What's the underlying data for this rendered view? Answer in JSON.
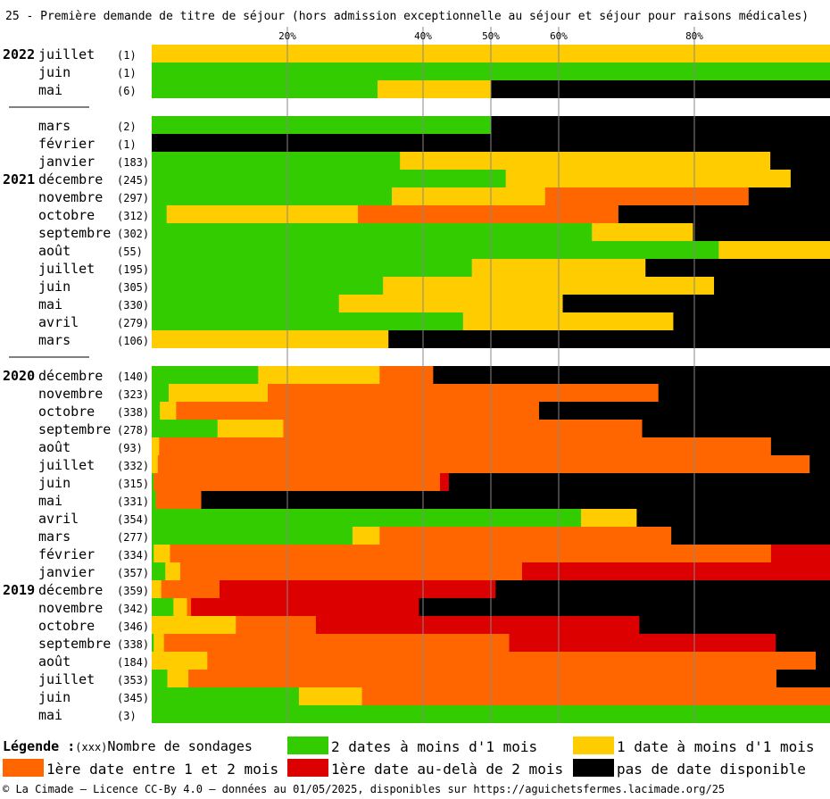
{
  "title": "25 - Première demande de titre de séjour (hors admission exceptionnelle au séjour et séjour pour raisons médicales)",
  "colors": {
    "green": "#33cc00",
    "yellow": "#ffcc00",
    "orange": "#ff6600",
    "red": "#dd0000",
    "black": "#000000"
  },
  "chart_data": {
    "type": "bar",
    "orientation": "horizontal",
    "stacked": true,
    "unit": "%",
    "xlim": [
      0,
      100
    ],
    "x_ticks": [
      20,
      40,
      50,
      60,
      80
    ],
    "x_tick_labels": [
      "20%",
      "40%",
      "50%",
      "60%",
      "80%"
    ],
    "grid": true,
    "series_order": [
      "green",
      "yellow",
      "orange",
      "red",
      "black"
    ],
    "rows": [
      {
        "year": "2022",
        "month": "juillet",
        "n": "(1)",
        "values": [
          0,
          100,
          0,
          0,
          0
        ]
      },
      {
        "year": "",
        "month": "juin",
        "n": "(1)",
        "values": [
          100,
          0,
          0,
          0,
          0
        ]
      },
      {
        "year": "",
        "month": "mai",
        "n": "(6)",
        "values": [
          33.3,
          16.7,
          0,
          0,
          50
        ]
      },
      {
        "separator": true
      },
      {
        "year": "",
        "month": "mars",
        "n": "(2)",
        "values": [
          50,
          0,
          0,
          0,
          50
        ]
      },
      {
        "year": "",
        "month": "février",
        "n": "(1)",
        "values": [
          0,
          0,
          0,
          0,
          100
        ]
      },
      {
        "year": "",
        "month": "janvier",
        "n": "(183)",
        "values": [
          36.6,
          54.6,
          0,
          0,
          8.8
        ]
      },
      {
        "year": "2021",
        "month": "décembre",
        "n": "(245)",
        "values": [
          52.2,
          42,
          0,
          0,
          5.8
        ]
      },
      {
        "year": "",
        "month": "novembre",
        "n": "(297)",
        "values": [
          35.4,
          22.6,
          30,
          0,
          12
        ]
      },
      {
        "year": "",
        "month": "octobre",
        "n": "(312)",
        "values": [
          2.2,
          28.2,
          38.4,
          0,
          31.2
        ]
      },
      {
        "year": "",
        "month": "septembre",
        "n": "(302)",
        "values": [
          64.9,
          14.9,
          0,
          0,
          20.2
        ]
      },
      {
        "year": "",
        "month": "août",
        "n": "(55)",
        "values": [
          83.6,
          16.4,
          0,
          0,
          0
        ]
      },
      {
        "year": "",
        "month": "juillet",
        "n": "(195)",
        "values": [
          47.2,
          25.6,
          0,
          0,
          27.2
        ]
      },
      {
        "year": "",
        "month": "juin",
        "n": "(305)",
        "values": [
          34.1,
          48.8,
          0,
          0,
          17.1
        ]
      },
      {
        "year": "",
        "month": "mai",
        "n": "(330)",
        "values": [
          27.6,
          33,
          0,
          0,
          39.4
        ]
      },
      {
        "year": "",
        "month": "avril",
        "n": "(279)",
        "values": [
          45.9,
          31,
          0,
          0,
          23.1
        ]
      },
      {
        "year": "",
        "month": "mars",
        "n": "(106)",
        "values": [
          0,
          34.9,
          0,
          0,
          65.1
        ]
      },
      {
        "separator": true
      },
      {
        "year": "2020",
        "month": "décembre",
        "n": "(140)",
        "values": [
          15.7,
          17.9,
          7.9,
          0,
          58.5
        ]
      },
      {
        "year": "",
        "month": "novembre",
        "n": "(323)",
        "values": [
          2.5,
          14.6,
          57.6,
          0,
          25.3
        ]
      },
      {
        "year": "",
        "month": "octobre",
        "n": "(338)",
        "values": [
          1.2,
          2.4,
          53.5,
          0,
          42.9
        ]
      },
      {
        "year": "",
        "month": "septembre",
        "n": "(278)",
        "values": [
          9.7,
          9.7,
          52.9,
          0,
          27.7
        ]
      },
      {
        "year": "",
        "month": "août",
        "n": "(93)",
        "values": [
          0,
          1.1,
          90.2,
          0,
          8.7
        ]
      },
      {
        "year": "",
        "month": "juillet",
        "n": "(332)",
        "values": [
          0,
          0.9,
          96.1,
          0,
          3
        ]
      },
      {
        "year": "",
        "month": "juin",
        "n": "(315)",
        "values": [
          0.3,
          0,
          42.2,
          1.3,
          56.2
        ]
      },
      {
        "year": "",
        "month": "mai",
        "n": "(331)",
        "values": [
          0.6,
          0,
          6.7,
          0,
          92.7
        ]
      },
      {
        "year": "",
        "month": "avril",
        "n": "(354)",
        "values": [
          63.3,
          8.2,
          0,
          0,
          28.5
        ]
      },
      {
        "year": "",
        "month": "mars",
        "n": "(277)",
        "values": [
          29.6,
          4,
          43,
          0,
          23.4
        ]
      },
      {
        "year": "",
        "month": "février",
        "n": "(334)",
        "values": [
          0.3,
          2.4,
          88.6,
          9.3,
          0
        ]
      },
      {
        "year": "",
        "month": "janvier",
        "n": "(357)",
        "values": [
          2,
          2.2,
          50.4,
          45.4,
          0
        ]
      },
      {
        "year": "2019",
        "month": "décembre",
        "n": "(359)",
        "values": [
          0,
          1.4,
          8.6,
          40.7,
          49.3
        ]
      },
      {
        "year": "",
        "month": "novembre",
        "n": "(342)",
        "values": [
          3.2,
          2,
          0.6,
          33.6,
          60.6
        ]
      },
      {
        "year": "",
        "month": "octobre",
        "n": "(346)",
        "values": [
          0,
          12.4,
          11.8,
          47.7,
          28.1
        ]
      },
      {
        "year": "",
        "month": "septembre",
        "n": "(338)",
        "values": [
          0.3,
          1.5,
          50.9,
          39.3,
          8
        ]
      },
      {
        "year": "",
        "month": "août",
        "n": "(184)",
        "values": [
          0,
          8.2,
          89.7,
          0,
          2.1
        ]
      },
      {
        "year": "",
        "month": "juillet",
        "n": "(353)",
        "values": [
          2.3,
          3.1,
          86.7,
          0,
          7.9
        ]
      },
      {
        "year": "",
        "month": "juin",
        "n": "(345)",
        "values": [
          21.7,
          9.3,
          69,
          0,
          0
        ]
      },
      {
        "year": "",
        "month": "mai",
        "n": "(3)",
        "values": [
          100,
          0,
          0,
          0,
          0
        ]
      }
    ],
    "legend_title": "Légende :",
    "legend_count_marker": "(xxx)",
    "legend_count_label": "Nombre de sondages",
    "legend": [
      {
        "color": "green",
        "label": "2 dates à moins d'1 mois"
      },
      {
        "color": "yellow",
        "label": "1 date à moins d'1 mois"
      },
      {
        "color": "orange",
        "label": "1ère date entre 1 et 2 mois"
      },
      {
        "color": "red",
        "label": "1ère date au-delà de 2 mois"
      },
      {
        "color": "black",
        "label": "pas de date disponible"
      }
    ]
  },
  "footer": "© La Cimade — Licence CC-By 4.0 — données au 01/05/2025, disponibles sur https://aguichetsfermes.lacimade.org/25"
}
